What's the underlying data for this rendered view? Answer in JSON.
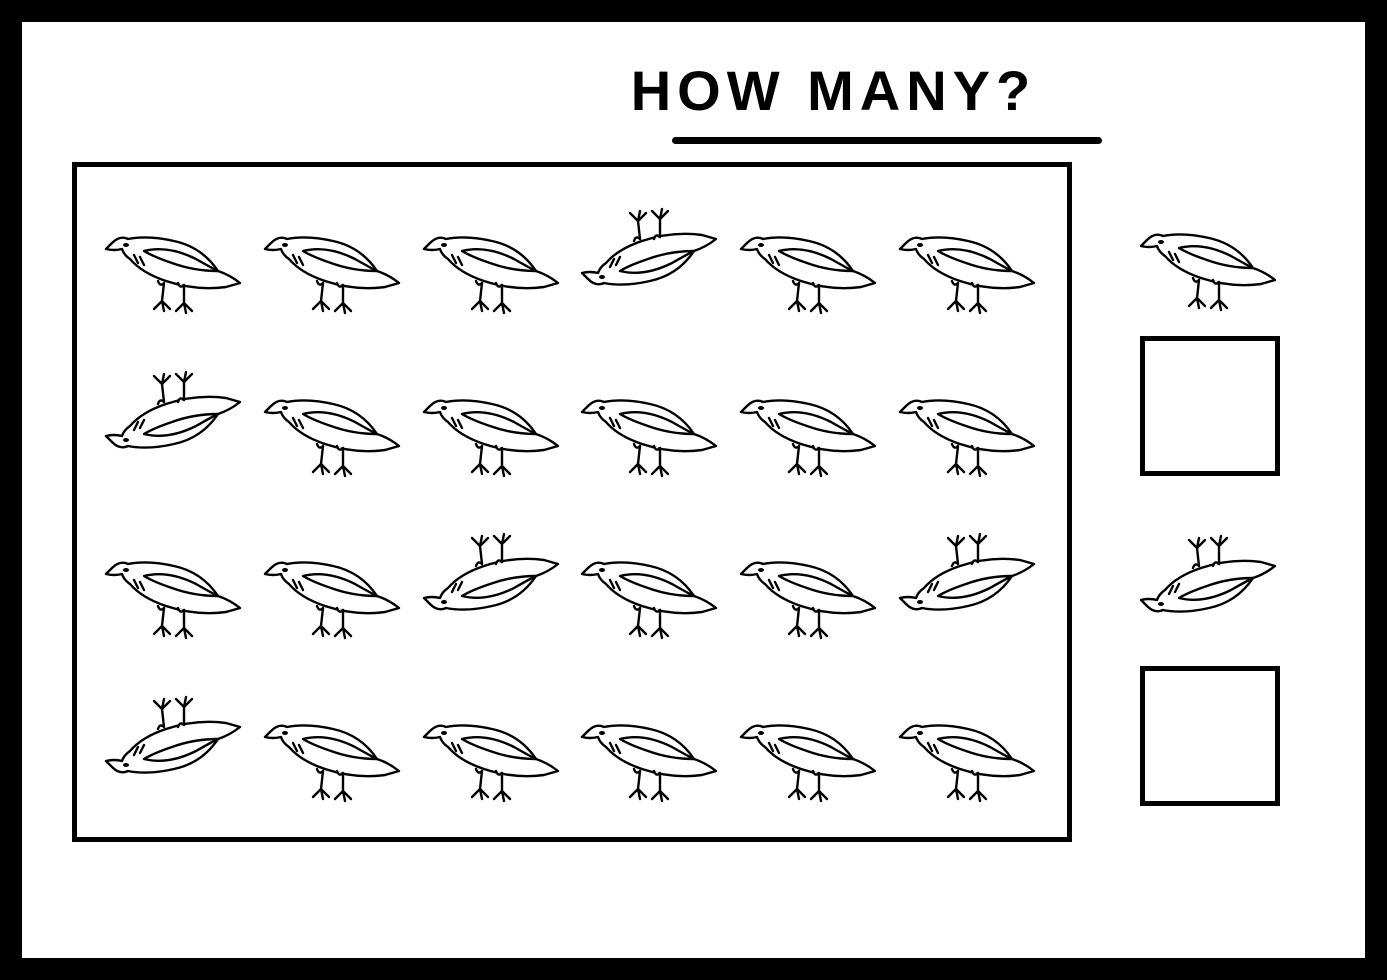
{
  "worksheet": {
    "title": "HOW MANY?",
    "title_fontsize": 56,
    "title_letter_spacing": 6,
    "underline_width": 430,
    "underline_height": 7,
    "colors": {
      "border": "#000000",
      "background": "#ffffff",
      "stroke": "#000000"
    },
    "outer_border_width": 22,
    "inner_border_width": 5,
    "grid": {
      "rows": 4,
      "cols": 6,
      "cells": [
        {
          "flipped": false
        },
        {
          "flipped": false
        },
        {
          "flipped": false
        },
        {
          "flipped": true
        },
        {
          "flipped": false
        },
        {
          "flipped": false
        },
        {
          "flipped": true
        },
        {
          "flipped": false
        },
        {
          "flipped": false
        },
        {
          "flipped": false
        },
        {
          "flipped": false
        },
        {
          "flipped": false
        },
        {
          "flipped": false
        },
        {
          "flipped": false
        },
        {
          "flipped": true
        },
        {
          "flipped": false
        },
        {
          "flipped": false
        },
        {
          "flipped": true
        },
        {
          "flipped": true
        },
        {
          "flipped": false
        },
        {
          "flipped": false
        },
        {
          "flipped": false
        },
        {
          "flipped": false
        },
        {
          "flipped": false
        }
      ]
    },
    "answers": [
      {
        "icon_flipped": false
      },
      {
        "icon_flipped": true
      }
    ],
    "bird_svg_stroke_width": 2.4
  }
}
